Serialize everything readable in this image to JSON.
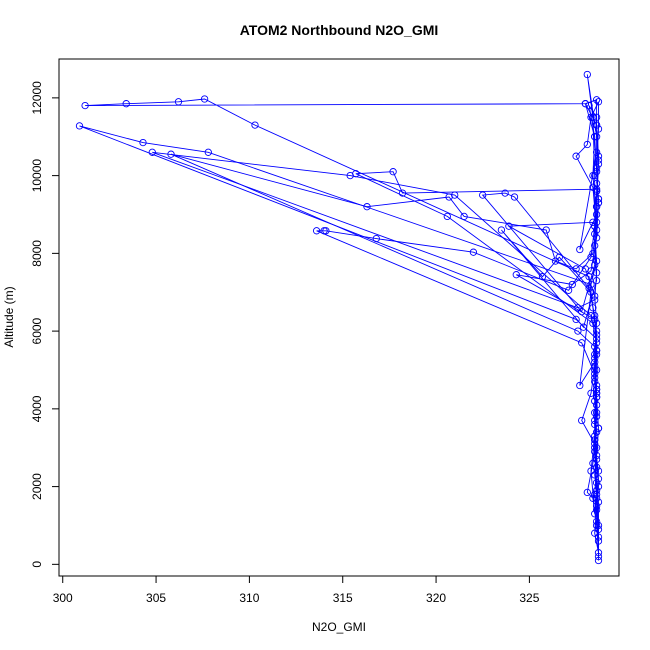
{
  "chart_data": {
    "type": "line",
    "title": "ATOM2 Northbound N2O_GMI",
    "xlabel": "N2O_GMI",
    "ylabel": "Altitude (m)",
    "xlim": [
      299.8,
      329.8
    ],
    "ylim": [
      -300,
      13000
    ],
    "xticks": [
      300,
      305,
      310,
      315,
      320,
      325
    ],
    "yticks": [
      0,
      2000,
      4000,
      6000,
      8000,
      10000,
      12000
    ],
    "grid": false,
    "legend": "none",
    "series_color": "#0000ff",
    "markers": "open-circle",
    "series": [
      {
        "values": [
          [
            328.7,
            100
          ],
          [
            328.7,
            600
          ],
          [
            328.6,
            1100
          ],
          [
            328.5,
            1800
          ],
          [
            328.6,
            2500
          ],
          [
            328.5,
            3200
          ],
          [
            328.5,
            3900
          ],
          [
            328.6,
            4600
          ],
          [
            328.5,
            5300
          ],
          [
            328.6,
            6000
          ],
          [
            328.4,
            6200
          ],
          [
            320.6,
            8950
          ],
          [
            315.7,
            10050
          ],
          [
            317.7,
            10100
          ],
          [
            318.2,
            9550
          ],
          [
            328.6,
            9650
          ]
        ]
      },
      {
        "values": [
          [
            328.6,
            9800
          ],
          [
            328.7,
            10500
          ],
          [
            328.6,
            11300
          ],
          [
            328.6,
            11950
          ],
          [
            328.0,
            11850
          ],
          [
            301.2,
            11800
          ],
          [
            303.4,
            11850
          ],
          [
            306.2,
            11900
          ],
          [
            307.6,
            11970
          ],
          [
            310.3,
            11300
          ],
          [
            328.2,
            7400
          ],
          [
            328.4,
            6600
          ],
          [
            328.6,
            5900
          ],
          [
            328.5,
            5100
          ],
          [
            328.6,
            4300
          ],
          [
            328.7,
            3500
          ]
        ]
      },
      {
        "values": [
          [
            328.7,
            3500
          ],
          [
            328.6,
            2800
          ],
          [
            328.7,
            2200
          ],
          [
            328.6,
            1500
          ],
          [
            328.5,
            800
          ],
          [
            328.7,
            300
          ],
          [
            328.6,
            1000
          ],
          [
            328.4,
            1700
          ],
          [
            328.1,
            1850
          ],
          [
            328.4,
            2600
          ],
          [
            328.6,
            3400
          ],
          [
            328.5,
            4200
          ],
          [
            328.6,
            5000
          ],
          [
            328.6,
            5800
          ],
          [
            327.5,
            6300
          ],
          [
            300.9,
            11280
          ],
          [
            304.3,
            10850
          ],
          [
            307.8,
            10600
          ],
          [
            328.3,
            7200
          ],
          [
            328.6,
            7800
          ],
          [
            328.5,
            8500
          ],
          [
            328.6,
            9200
          ]
        ]
      },
      {
        "values": [
          [
            328.6,
            9200
          ],
          [
            328.7,
            10300
          ],
          [
            328.6,
            11000
          ],
          [
            328.1,
            12600
          ],
          [
            328.4,
            11500
          ],
          [
            328.5,
            10000
          ],
          [
            328.5,
            8700
          ],
          [
            328.6,
            7500
          ],
          [
            328.5,
            6800
          ],
          [
            327.6,
            6600
          ],
          [
            304.8,
            10600
          ],
          [
            315.4,
            10000
          ],
          [
            321.0,
            9500
          ],
          [
            328.3,
            6400
          ],
          [
            328.6,
            5700
          ],
          [
            328.5,
            5000
          ],
          [
            328.6,
            4400
          ]
        ]
      },
      {
        "values": [
          [
            328.6,
            4400
          ],
          [
            328.5,
            3700
          ],
          [
            328.6,
            3000
          ],
          [
            328.5,
            2300
          ],
          [
            328.7,
            1600
          ],
          [
            328.7,
            900
          ],
          [
            328.6,
            1800
          ],
          [
            328.5,
            2900
          ],
          [
            328.6,
            3900
          ],
          [
            328.5,
            4800
          ],
          [
            328.5,
            5600
          ],
          [
            327.6,
            6000
          ],
          [
            305.8,
            10550
          ],
          [
            316.3,
            9200
          ],
          [
            320.7,
            9450
          ],
          [
            321.5,
            8950
          ],
          [
            325.9,
            8600
          ],
          [
            326.4,
            7800
          ],
          [
            327.5,
            7600
          ],
          [
            328.4,
            8000
          ],
          [
            328.6,
            8800
          ],
          [
            328.7,
            9400
          ]
        ]
      },
      {
        "values": [
          [
            328.7,
            9400
          ],
          [
            328.6,
            10200
          ],
          [
            328.7,
            11200
          ],
          [
            328.7,
            11900
          ],
          [
            328.3,
            11500
          ],
          [
            328.1,
            10800
          ],
          [
            327.5,
            10500
          ],
          [
            328.4,
            9700
          ],
          [
            328.6,
            8600
          ],
          [
            328.5,
            7700
          ],
          [
            327.8,
            6500
          ],
          [
            322.5,
            9500
          ],
          [
            323.7,
            9550
          ],
          [
            324.2,
            9450
          ],
          [
            328.2,
            7100
          ],
          [
            328.5,
            6400
          ],
          [
            328.6,
            5500
          ]
        ]
      },
      {
        "values": [
          [
            328.6,
            5500
          ],
          [
            328.5,
            4700
          ],
          [
            328.6,
            3800
          ],
          [
            328.5,
            3000
          ],
          [
            328.7,
            2400
          ],
          [
            328.6,
            1700
          ],
          [
            328.5,
            1300
          ],
          [
            328.3,
            2400
          ],
          [
            328.5,
            3300
          ],
          [
            328.6,
            4100
          ],
          [
            328.5,
            4900
          ],
          [
            327.8,
            5700
          ],
          [
            313.6,
            8580
          ],
          [
            314.0,
            8580
          ],
          [
            314.1,
            8580
          ],
          [
            316.8,
            8380
          ],
          [
            322.0,
            8030
          ],
          [
            327.1,
            7050
          ],
          [
            328.3,
            7900
          ],
          [
            328.5,
            8700
          ],
          [
            328.6,
            9600
          ]
        ]
      },
      {
        "values": [
          [
            328.6,
            9600
          ],
          [
            328.7,
            10400
          ],
          [
            328.6,
            11300
          ],
          [
            328.0,
            11850
          ],
          [
            328.5,
            11000
          ],
          [
            328.4,
            10000
          ],
          [
            328.6,
            9000
          ],
          [
            328.5,
            8200
          ],
          [
            328.6,
            7300
          ],
          [
            327.9,
            6100
          ],
          [
            323.5,
            8600
          ],
          [
            325.7,
            7400
          ],
          [
            326.6,
            7900
          ],
          [
            328.3,
            7000
          ],
          [
            327.7,
            4600
          ],
          [
            328.5,
            5200
          ],
          [
            328.6,
            4500
          ]
        ]
      },
      {
        "values": [
          [
            328.6,
            4500
          ],
          [
            328.5,
            3600
          ],
          [
            328.6,
            2700
          ],
          [
            328.7,
            2000
          ],
          [
            328.6,
            1400
          ],
          [
            328.7,
            700
          ],
          [
            328.6,
            1900
          ],
          [
            328.5,
            3100
          ],
          [
            327.8,
            3700
          ],
          [
            328.3,
            4400
          ],
          [
            328.6,
            5400
          ],
          [
            328.5,
            6300
          ],
          [
            324.3,
            7450
          ],
          [
            327.3,
            7200
          ],
          [
            328.3,
            7550
          ],
          [
            328.6,
            8400
          ],
          [
            328.7,
            9300
          ]
        ]
      },
      {
        "values": [
          [
            328.7,
            9300
          ],
          [
            328.6,
            10100
          ],
          [
            328.5,
            11000
          ],
          [
            328.2,
            11800
          ],
          [
            328.6,
            11500
          ],
          [
            328.6,
            10600
          ],
          [
            327.7,
            8100
          ],
          [
            328.4,
            8800
          ],
          [
            323.9,
            8700
          ],
          [
            328.0,
            7600
          ],
          [
            328.5,
            6900
          ],
          [
            328.6,
            6200
          ],
          [
            328.5,
            5400
          ],
          [
            328.6,
            4300
          ],
          [
            328.5,
            3200
          ],
          [
            328.6,
            2100
          ],
          [
            328.7,
            1000
          ],
          [
            328.7,
            200
          ]
        ]
      }
    ]
  }
}
